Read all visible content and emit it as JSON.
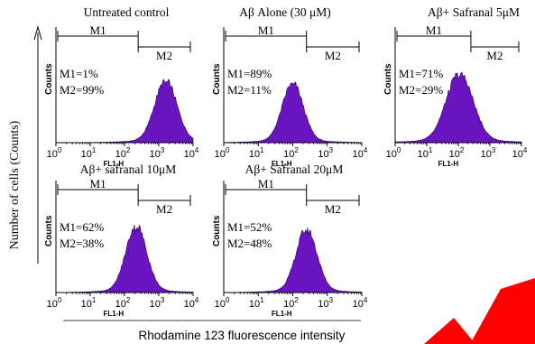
{
  "figure": {
    "y_axis_label": "Number of cells (Counts)",
    "x_axis_label": "Rhodamine 123 fluorescence intensity"
  },
  "colors": {
    "histogram_fill": "#6a13c0",
    "axis": "#000000",
    "gate_marker": "#000000",
    "red_mark": "#ff0000"
  },
  "chart_data": [
    {
      "type": "area",
      "title": "Untreated control",
      "xlabel": "FL1-H",
      "ylabel": "Counts",
      "x_scale": "log",
      "xlim": [
        1,
        10000
      ],
      "x_ticks": [
        {
          "base": "10",
          "exp": "0"
        },
        {
          "base": "10",
          "exp": "1"
        },
        {
          "base": "10",
          "exp": "2"
        },
        {
          "base": "10",
          "exp": "3"
        },
        {
          "base": "10",
          "exp": "4"
        }
      ],
      "gates": [
        {
          "name": "M1",
          "range": [
            1,
            250
          ]
        },
        {
          "name": "M2",
          "range": [
            250,
            10000
          ]
        }
      ],
      "stats": [
        "M1=1%",
        "M2=99%"
      ],
      "histogram": {
        "peak": 1600,
        "width": 0.32,
        "height": 0.52,
        "floor": 0.04
      }
    },
    {
      "type": "area",
      "title": "Aβ Alone (30 μM)",
      "xlabel": "FL1-H",
      "ylabel": "Counts",
      "x_scale": "log",
      "xlim": [
        1,
        10000
      ],
      "x_ticks": [
        {
          "base": "10",
          "exp": "0"
        },
        {
          "base": "10",
          "exp": "1"
        },
        {
          "base": "10",
          "exp": "2"
        },
        {
          "base": "10",
          "exp": "3"
        },
        {
          "base": "10",
          "exp": "4"
        }
      ],
      "gates": [
        {
          "name": "M1",
          "range": [
            1,
            250
          ]
        },
        {
          "name": "M2",
          "range": [
            250,
            10000
          ]
        }
      ],
      "stats": [
        "M1=89%",
        "M2=11%"
      ],
      "histogram": {
        "peak": 100,
        "width": 0.3,
        "height": 0.5,
        "floor": 0.04
      }
    },
    {
      "type": "area",
      "title": "Aβ+ Safranal 5μM",
      "xlabel": "FL1-H",
      "ylabel": "Counts",
      "x_scale": "log",
      "xlim": [
        1,
        10000
      ],
      "x_ticks": [
        {
          "base": "10",
          "exp": "0"
        },
        {
          "base": "10",
          "exp": "1"
        },
        {
          "base": "10",
          "exp": "2"
        },
        {
          "base": "10",
          "exp": "3"
        },
        {
          "base": "10",
          "exp": "4"
        }
      ],
      "gates": [
        {
          "name": "M1",
          "range": [
            1,
            250
          ]
        },
        {
          "name": "M2",
          "range": [
            250,
            10000
          ]
        }
      ],
      "stats": [
        "M1=71%",
        "M2=29%"
      ],
      "histogram": {
        "peak": 110,
        "width": 0.42,
        "height": 0.58,
        "floor": 0.04
      }
    },
    {
      "type": "area",
      "title": "Aβ+ safranal 10μM",
      "xlabel": "FL1-H",
      "ylabel": "Counts",
      "x_scale": "log",
      "xlim": [
        1,
        10000
      ],
      "x_ticks": [
        {
          "base": "10",
          "exp": "0"
        },
        {
          "base": "10",
          "exp": "1"
        },
        {
          "base": "10",
          "exp": "2"
        },
        {
          "base": "10",
          "exp": "3"
        },
        {
          "base": "10",
          "exp": "4"
        }
      ],
      "gates": [
        {
          "name": "M1",
          "range": [
            1,
            250
          ]
        },
        {
          "name": "M2",
          "range": [
            250,
            10000
          ]
        }
      ],
      "stats": [
        "M1=62%",
        "M2=38%"
      ],
      "histogram": {
        "peak": 220,
        "width": 0.3,
        "height": 0.58,
        "floor": 0.04
      }
    },
    {
      "type": "area",
      "title": "Aβ+ Safranal 20μM",
      "xlabel": "FL1-H",
      "ylabel": "Counts",
      "x_scale": "log",
      "xlim": [
        1,
        10000
      ],
      "x_ticks": [
        {
          "base": "10",
          "exp": "0"
        },
        {
          "base": "10",
          "exp": "1"
        },
        {
          "base": "10",
          "exp": "2"
        },
        {
          "base": "10",
          "exp": "3"
        },
        {
          "base": "10",
          "exp": "4"
        }
      ],
      "gates": [
        {
          "name": "M1",
          "range": [
            1,
            250
          ]
        },
        {
          "name": "M2",
          "range": [
            250,
            10000
          ]
        }
      ],
      "stats": [
        "M1=52%",
        "M2=48%"
      ],
      "histogram": {
        "peak": 250,
        "width": 0.3,
        "height": 0.55,
        "floor": 0.04
      }
    }
  ]
}
